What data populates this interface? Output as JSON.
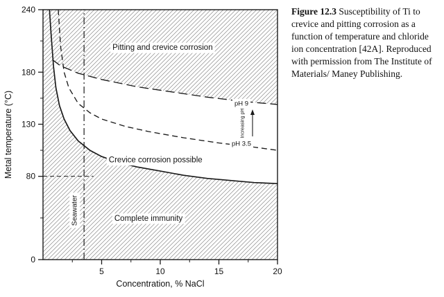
{
  "figure": {
    "caption_label": "Figure 12.3",
    "caption_text": " Susceptibility of Ti to crevice and pitting corrosion as a function of temperature and chloride ion concentration [42A]. Reproduced with permission from The Institute of Materials/ Maney Publishing."
  },
  "chart_data": {
    "type": "line",
    "title": "",
    "xlabel": "Concentration, % NaCl",
    "ylabel": "Metal temperature (°C)",
    "xlim": [
      0,
      20
    ],
    "ylim": [
      0,
      240
    ],
    "grid": false,
    "x_ticks": {
      "major": [
        5,
        10,
        15,
        20
      ],
      "minor": [
        2.5,
        7.5,
        12.5,
        17.5
      ]
    },
    "y_ticks": {
      "major": [
        0,
        80,
        130,
        180,
        240
      ],
      "minor": [
        40,
        105,
        155,
        210
      ]
    },
    "regions": [
      {
        "name": "Pitting and crevice corrosion",
        "fill": "hatched",
        "label_at": {
          "x": 10.2,
          "y": 204
        }
      },
      {
        "name": "Crevice corrosion possible",
        "fill": "white",
        "label_at": {
          "x": 9.6,
          "y": 96
        }
      },
      {
        "name": "Complete immunity",
        "fill": "hatched",
        "label_at": {
          "x": 9.0,
          "y": 40
        }
      }
    ],
    "series": [
      {
        "name": "complete-immunity-boundary",
        "label": "",
        "style": "solid",
        "points": [
          [
            0.55,
            240
          ],
          [
            0.7,
            215
          ],
          [
            0.9,
            185
          ],
          [
            1.1,
            165
          ],
          [
            1.4,
            148
          ],
          [
            1.8,
            135
          ],
          [
            2.3,
            124
          ],
          [
            3,
            114
          ],
          [
            4,
            105
          ],
          [
            5,
            99
          ],
          [
            6.5,
            93
          ],
          [
            8,
            89
          ],
          [
            10,
            85
          ],
          [
            12,
            81
          ],
          [
            14,
            78
          ],
          [
            16,
            76
          ],
          [
            18,
            74
          ],
          [
            20,
            73
          ]
        ]
      },
      {
        "name": "ph-3.5-boundary",
        "label": "pH 3.5",
        "style": "dashed",
        "points": [
          [
            1.3,
            240
          ],
          [
            1.5,
            205
          ],
          [
            1.8,
            180
          ],
          [
            2.2,
            165
          ],
          [
            3,
            150
          ],
          [
            4,
            141
          ],
          [
            5,
            135
          ],
          [
            7,
            128
          ],
          [
            9,
            123
          ],
          [
            12,
            117
          ],
          [
            15,
            112
          ],
          [
            18,
            108
          ],
          [
            20,
            105
          ]
        ]
      },
      {
        "name": "ph-9-boundary",
        "label": "pH 9",
        "style": "long-dash",
        "points": [
          [
            0.8,
            192
          ],
          [
            1.5,
            186
          ],
          [
            3,
            179
          ],
          [
            5,
            173
          ],
          [
            8,
            166
          ],
          [
            11,
            161
          ],
          [
            14,
            156
          ],
          [
            17,
            152
          ],
          [
            20,
            149
          ]
        ]
      }
    ],
    "annotations": {
      "seawater_line_x": 3.5,
      "seawater_label": "Seawater",
      "temp_reference_line_y": 80,
      "temp_reference_line_x_end": 4.3,
      "ph_top_label": "pH 9",
      "ph_bottom_label": "pH 3.5",
      "increasing_ph_label": "Increasing pH"
    },
    "hatch_color": "#8a8a8a",
    "line_color": "#1a1a1a"
  }
}
